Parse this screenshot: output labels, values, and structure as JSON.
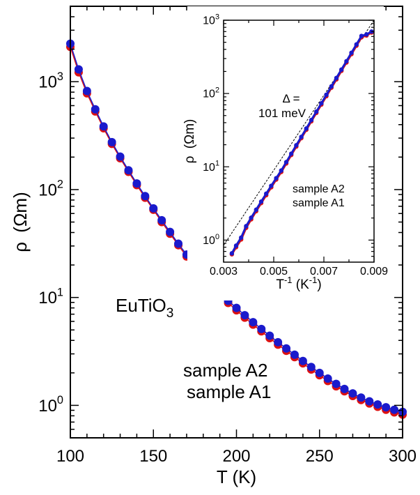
{
  "chart_data": [
    {
      "type": "scatter",
      "title": "",
      "xlabel": "T (K)",
      "ylabel_symbol": "ρ",
      "ylabel_unit": "(Ωm)",
      "y_scale": "log",
      "xlim": [
        100,
        300
      ],
      "ylim": [
        0.5,
        5000
      ],
      "x_ticks": [
        100,
        150,
        200,
        250,
        300
      ],
      "x_tick_labels": [
        "100",
        "150",
        "200",
        "250",
        "300"
      ],
      "y_ticks": [
        1,
        10,
        100,
        1000
      ],
      "y_tick_labels": [
        {
          "base": "10",
          "exp": "0"
        },
        {
          "base": "10",
          "exp": "1"
        },
        {
          "base": "10",
          "exp": "2"
        },
        {
          "base": "10",
          "exp": "3"
        }
      ],
      "annotation": {
        "main": "EuTiO",
        "sub": "3"
      },
      "legend_placement": "bottom-center",
      "series": [
        {
          "name": "sample A1",
          "color": "#dd1111",
          "x": [
            100,
            105,
            110,
            115,
            120,
            125,
            130,
            135,
            140,
            145,
            150,
            155,
            160,
            165,
            170,
            175,
            180,
            185,
            190,
            195,
            200,
            205,
            210,
            215,
            220,
            225,
            230,
            235,
            240,
            245,
            250,
            255,
            260,
            265,
            270,
            275,
            280,
            285,
            290,
            295,
            300
          ],
          "y": [
            2100,
            1220,
            780,
            530,
            370,
            265,
            195,
            146,
            110,
            84,
            65,
            50,
            39,
            30.5,
            24,
            19,
            15,
            12.5,
            10.5,
            8.9,
            7.6,
            6.5,
            5.6,
            4.85,
            4.2,
            3.65,
            3.2,
            2.8,
            2.45,
            2.15,
            1.9,
            1.68,
            1.5,
            1.35,
            1.22,
            1.12,
            1.04,
            0.97,
            0.91,
            0.86,
            0.82
          ]
        },
        {
          "name": "sample A2",
          "color": "#1a1acc",
          "x": [
            100,
            105,
            110,
            115,
            120,
            125,
            130,
            135,
            140,
            145,
            150,
            155,
            160,
            165,
            170,
            175,
            180,
            185,
            190,
            195,
            200,
            205,
            210,
            215,
            220,
            225,
            230,
            235,
            240,
            245,
            250,
            255,
            260,
            265,
            270,
            275,
            280,
            285,
            290,
            295,
            300
          ],
          "y": [
            2250,
            1300,
            820,
            555,
            385,
            275,
            202,
            151,
            114,
            87,
            67,
            52,
            40.5,
            31.5,
            25,
            19.8,
            15.7,
            13.1,
            11,
            9.3,
            8,
            6.85,
            5.9,
            5.1,
            4.42,
            3.85,
            3.37,
            2.95,
            2.58,
            2.27,
            2,
            1.77,
            1.58,
            1.42,
            1.29,
            1.18,
            1.09,
            1.02,
            0.96,
            0.91,
            0.87
          ]
        }
      ]
    },
    {
      "type": "scatter",
      "title": "",
      "xlabel_base": "T",
      "xlabel_sup": "-1",
      "xlabel_unit": " (K",
      "xlabel_unit_sup": "-1",
      "xlabel_close": ")",
      "ylabel_symbol": "ρ",
      "ylabel_unit": "(Ωm)",
      "y_scale": "log",
      "xlim": [
        0.003,
        0.009
      ],
      "ylim": [
        0.5,
        1000
      ],
      "x_ticks": [
        0.003,
        0.005,
        0.007,
        0.009
      ],
      "x_tick_labels": [
        "0.003",
        "0.005",
        "0.007",
        "0.009"
      ],
      "y_ticks": [
        1,
        10,
        100,
        1000
      ],
      "y_tick_labels": [
        {
          "base": "10",
          "exp": "0"
        },
        {
          "base": "10",
          "exp": "1"
        },
        {
          "base": "10",
          "exp": "2"
        },
        {
          "base": "10",
          "exp": "3"
        }
      ],
      "annotation_line1": "Δ =",
      "annotation_line2": "101 meV",
      "legend_placement": "bottom-right",
      "fit_line": {
        "x": [
          0.003,
          0.009
        ],
        "y": [
          0.85,
          1000
        ]
      },
      "series": [
        {
          "name": "sample A2",
          "color": "#1a1acc",
          "x": [
            0.00333,
            0.0035,
            0.0037,
            0.0039,
            0.0041,
            0.0043,
            0.0045,
            0.0047,
            0.0049,
            0.0051,
            0.0053,
            0.0055,
            0.0057,
            0.0059,
            0.0061,
            0.0063,
            0.0065,
            0.0067,
            0.0069,
            0.0071,
            0.0073,
            0.0075,
            0.0077,
            0.0079,
            0.0081,
            0.0083,
            0.0085,
            0.0087,
            0.0089
          ],
          "y": [
            0.66,
            0.84,
            1.08,
            1.55,
            2.02,
            2.6,
            3.35,
            4.3,
            5.5,
            7,
            8.9,
            11.6,
            15.1,
            19.7,
            25.6,
            33.3,
            43.5,
            56.6,
            73.6,
            96,
            125,
            163,
            212,
            276,
            360,
            468,
            610,
            640,
            700
          ]
        },
        {
          "name": "sample A1",
          "color": "#dd1111",
          "x": [
            0.00333,
            0.0035,
            0.0037,
            0.0039,
            0.0041,
            0.0043,
            0.0045,
            0.0047,
            0.0049,
            0.0051,
            0.0053,
            0.0055,
            0.0057,
            0.0059,
            0.0061,
            0.0063,
            0.0065,
            0.0067,
            0.0069,
            0.0071,
            0.0073,
            0.0075,
            0.0077,
            0.0079,
            0.0081,
            0.0083,
            0.0085,
            0.0087,
            0.0089
          ],
          "y": [
            0.64,
            0.8,
            1.02,
            1.47,
            1.92,
            2.48,
            3.2,
            4.1,
            5.25,
            6.7,
            8.5,
            11.1,
            14.5,
            18.9,
            24.6,
            32,
            41.8,
            54.4,
            70.7,
            92,
            120,
            156,
            204,
            265,
            345,
            450,
            585,
            620,
            680
          ]
        }
      ]
    }
  ]
}
